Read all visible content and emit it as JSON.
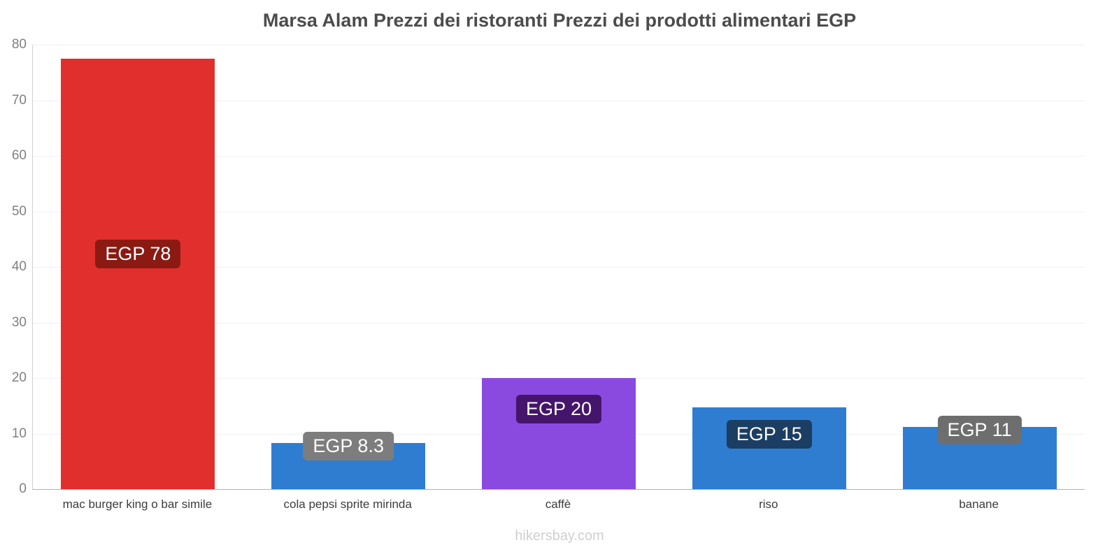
{
  "title": "Marsa Alam Prezzi dei ristoranti Prezzi dei prodotti alimentari EGP",
  "footer": "hikersbay.com",
  "chart_data": {
    "type": "bar",
    "title": "Marsa Alam Prezzi dei ristoranti Prezzi dei prodotti alimentari EGP",
    "categories": [
      "mac burger king o bar simile",
      "cola pepsi sprite mirinda",
      "caffè",
      "riso",
      "banane"
    ],
    "values": [
      77.5,
      8.3,
      20,
      14.7,
      11.2
    ],
    "data_labels": [
      "EGP 78",
      "EGP 8.3",
      "EGP 20",
      "EGP 15",
      "EGP 11"
    ],
    "bar_colors": [
      "#e12f2e",
      "#2e7dd1",
      "#8a4ae0",
      "#2e7dd1",
      "#2e7dd1"
    ],
    "label_colors": [
      "#8a1a12",
      "#7d7d7d",
      "#45156b",
      "#1c3e63",
      "#6e6e6e"
    ],
    "xlabel": "",
    "ylabel": "",
    "ylim": [
      0,
      80
    ],
    "yticks": [
      0,
      10,
      20,
      30,
      40,
      50,
      60,
      70,
      80
    ],
    "grid": true,
    "legend": false,
    "currency": "EGP"
  }
}
